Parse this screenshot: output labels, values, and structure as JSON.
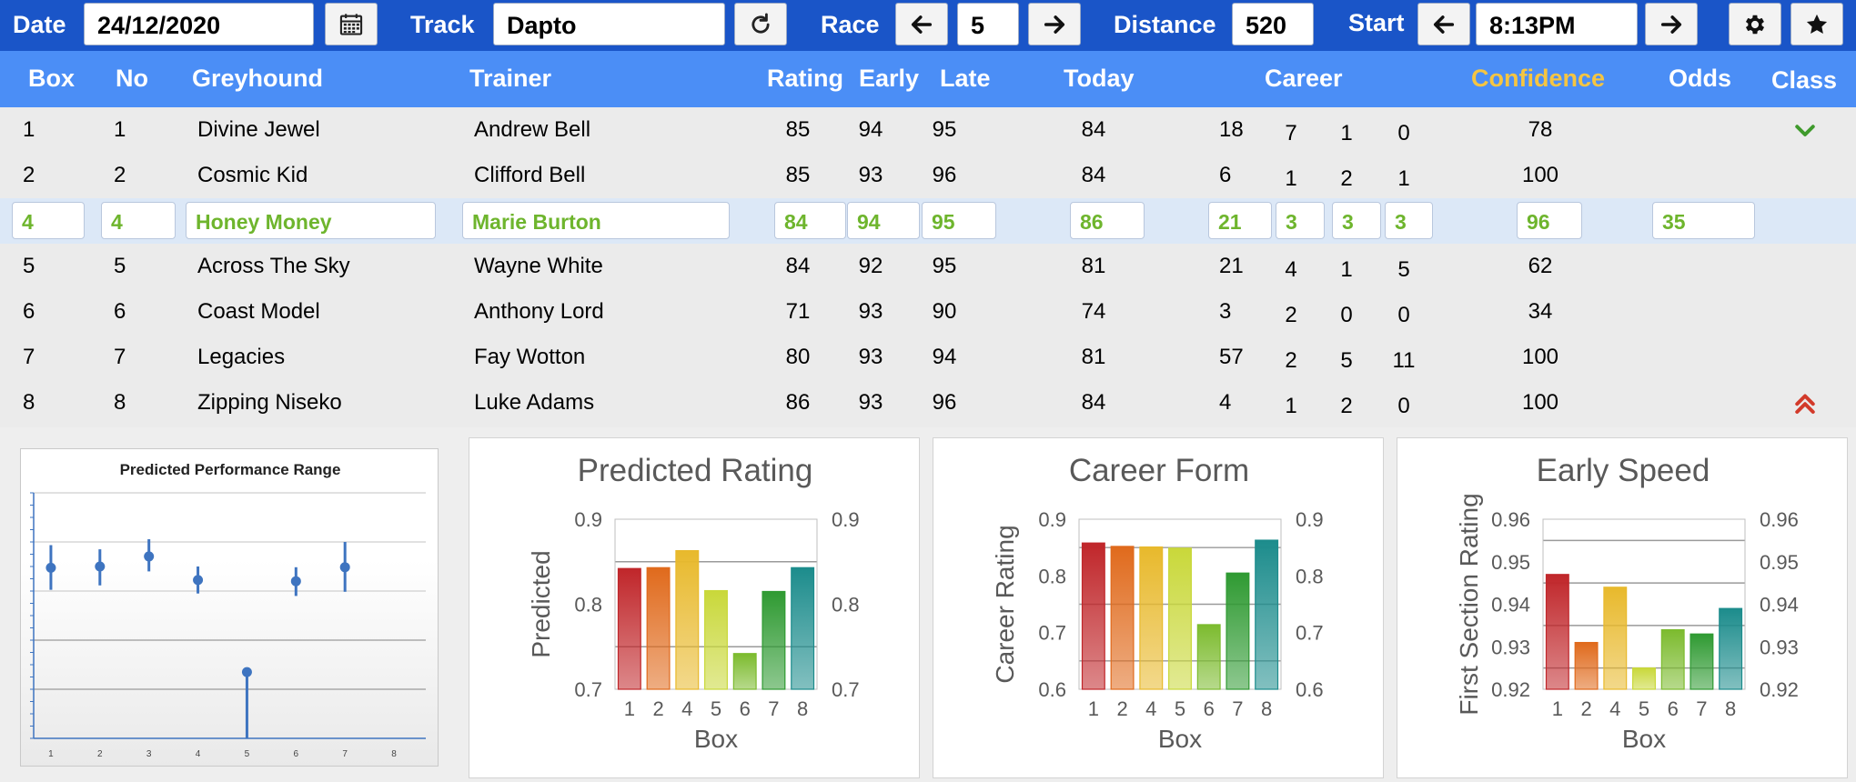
{
  "toolbar": {
    "date_label": "Date",
    "date_value": "24/12/2020",
    "track_label": "Track",
    "track_value": "Dapto",
    "race_label": "Race",
    "race_value": "5",
    "distance_label": "Distance",
    "distance_value": "520",
    "start_label": "Start",
    "start_value": "8:13PM",
    "icons": [
      "calendar-icon",
      "refresh-icon",
      "arrow-left-icon",
      "arrow-right-icon",
      "gear-icon",
      "star-icon"
    ]
  },
  "table": {
    "headers": {
      "box": "Box",
      "no": "No",
      "greyhound": "Greyhound",
      "trainer": "Trainer",
      "rating": "Rating",
      "early": "Early",
      "late": "Late",
      "today": "Today",
      "career": "Career",
      "confidence": "Confidence",
      "odds": "Odds",
      "class": "Class"
    },
    "header_color": "#4b8ef6",
    "confidence_color": "#f5c542",
    "highlight_text_color": "#6eb52d",
    "rows": [
      {
        "box": "1",
        "no": "1",
        "greyhound": "Divine Jewel",
        "trainer": "Andrew Bell",
        "rating": "85",
        "early": "94",
        "late": "95",
        "today": "84",
        "career": [
          "18",
          "7",
          "1",
          "0"
        ],
        "confidence": "78",
        "odds": "",
        "class_icon": "chevron-down-icon",
        "selected": false
      },
      {
        "box": "2",
        "no": "2",
        "greyhound": "Cosmic Kid",
        "trainer": "Clifford Bell",
        "rating": "85",
        "early": "93",
        "late": "96",
        "today": "84",
        "career": [
          "6",
          "1",
          "2",
          "1"
        ],
        "confidence": "100",
        "odds": "",
        "class_icon": "",
        "selected": false
      },
      {
        "box": "4",
        "no": "4",
        "greyhound": "Honey Money",
        "trainer": "Marie Burton",
        "rating": "84",
        "early": "94",
        "late": "95",
        "today": "86",
        "career": [
          "21",
          "3",
          "3",
          "3"
        ],
        "confidence": "96",
        "odds": "35",
        "class_icon": "",
        "selected": true
      },
      {
        "box": "5",
        "no": "5",
        "greyhound": "Across The Sky",
        "trainer": "Wayne White",
        "rating": "84",
        "early": "92",
        "late": "95",
        "today": "81",
        "career": [
          "21",
          "4",
          "1",
          "5"
        ],
        "confidence": "62",
        "odds": "",
        "class_icon": "",
        "selected": false
      },
      {
        "box": "6",
        "no": "6",
        "greyhound": "Coast Model",
        "trainer": "Anthony Lord",
        "rating": "71",
        "early": "93",
        "late": "90",
        "today": "74",
        "career": [
          "3",
          "2",
          "0",
          "0"
        ],
        "confidence": "34",
        "odds": "",
        "class_icon": "",
        "selected": false
      },
      {
        "box": "7",
        "no": "7",
        "greyhound": "Legacies",
        "trainer": "Fay Wotton",
        "rating": "80",
        "early": "93",
        "late": "94",
        "today": "81",
        "career": [
          "57",
          "2",
          "5",
          "11"
        ],
        "confidence": "100",
        "odds": "",
        "class_icon": "",
        "selected": false
      },
      {
        "box": "8",
        "no": "8",
        "greyhound": "Zipping Niseko",
        "trainer": "Luke Adams",
        "rating": "86",
        "early": "93",
        "late": "96",
        "today": "84",
        "career": [
          "4",
          "1",
          "2",
          "0"
        ],
        "confidence": "100",
        "odds": "",
        "class_icon": "double-chevron-up-icon",
        "selected": false
      }
    ]
  },
  "chart_data": [
    {
      "type": "scatter",
      "title": "Predicted Performance Range",
      "categories": [
        "1",
        "2",
        "3",
        "4",
        "5",
        "6",
        "7",
        "8"
      ],
      "points": [
        {
          "x": "1",
          "y": 0.695,
          "low": 0.605,
          "high": 0.787
        },
        {
          "x": "2",
          "y": 0.7,
          "low": 0.623,
          "high": 0.77
        },
        {
          "x": "3",
          "y": 0.741,
          "low": 0.68,
          "high": 0.811
        },
        {
          "x": "4",
          "y": 0.645,
          "low": 0.59,
          "high": 0.7
        },
        {
          "x": "5",
          "y": 0.27,
          "low": 0.0,
          "high": 0.27
        },
        {
          "x": "6",
          "y": 0.64,
          "low": 0.58,
          "high": 0.697
        },
        {
          "x": "7",
          "y": 0.697,
          "low": 0.597,
          "high": 0.8
        }
      ],
      "ylim": [
        0,
        1
      ],
      "marker_color": "#3e74c0"
    },
    {
      "type": "bar",
      "title": "Predicted Rating",
      "categories": [
        "1",
        "2",
        "4",
        "5",
        "6",
        "7",
        "8"
      ],
      "values": [
        0.842,
        0.843,
        0.863,
        0.816,
        0.742,
        0.815,
        0.843
      ],
      "xlabel": "Box",
      "ylabel": "Predicted",
      "ylim": [
        0.7,
        0.9
      ],
      "ticks": [
        "0.7",
        "0.8",
        "0.9"
      ],
      "tick_values": [
        0.7,
        0.8,
        0.9
      ]
    },
    {
      "type": "bar",
      "title": "Career Form",
      "categories": [
        "1",
        "2",
        "4",
        "5",
        "6",
        "7",
        "8"
      ],
      "values": [
        0.858,
        0.852,
        0.851,
        0.849,
        0.714,
        0.805,
        0.863
      ],
      "xlabel": "Box",
      "ylabel": "Career Rating",
      "ylim": [
        0.6,
        0.9
      ],
      "ticks": [
        "0.6",
        "0.7",
        "0.8",
        "0.9"
      ],
      "tick_values": [
        0.6,
        0.7,
        0.8,
        0.9
      ]
    },
    {
      "type": "bar",
      "title": "Early Speed",
      "categories": [
        "1",
        "2",
        "4",
        "5",
        "6",
        "7",
        "8"
      ],
      "values": [
        0.947,
        0.931,
        0.944,
        0.925,
        0.934,
        0.933,
        0.939
      ],
      "xlabel": "Box",
      "ylabel": "First Section Rating",
      "ylim": [
        0.92,
        0.96
      ],
      "ticks": [
        "0.92",
        "0.93",
        "0.94",
        "0.95",
        "0.96"
      ],
      "tick_values": [
        0.92,
        0.93,
        0.94,
        0.95,
        0.96
      ]
    }
  ],
  "bar_colors": [
    "#c0262a",
    "#e06a1c",
    "#e8b92c",
    "#c9d83a",
    "#7cbb2e",
    "#2f9a32",
    "#1c8c8c"
  ]
}
